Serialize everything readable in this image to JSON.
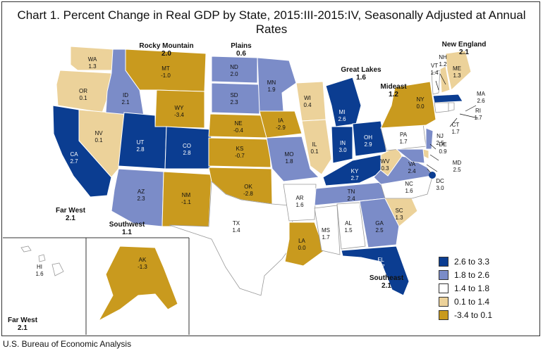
{
  "title": "Chart 1. Percent Change in Real GDP by State, 2015:III-2015:IV, Seasonally Adjusted at Annual Rates",
  "source": "U.S. Bureau of Economic Analysis",
  "colors": {
    "bin1": "#0b3d91",
    "bin2": "#7b8cc8",
    "bin3": "#ffffff",
    "bin4": "#ecd29a",
    "bin5": "#c99a1e"
  },
  "legend": [
    {
      "label": "2.6 to 3.3",
      "color": "#0b3d91"
    },
    {
      "label": "1.8 to 2.6",
      "color": "#7b8cc8"
    },
    {
      "label": "1.4 to 1.8",
      "color": "#ffffff"
    },
    {
      "label": "0.1 to 1.4",
      "color": "#ecd29a"
    },
    {
      "label": "-3.4 to 0.1",
      "color": "#c99a1e"
    }
  ],
  "regions": {
    "rocky_mountain": {
      "name": "Rocky Mountain",
      "value": "2.0"
    },
    "plains": {
      "name": "Plains",
      "value": "0.6"
    },
    "great_lakes": {
      "name": "Great Lakes",
      "value": "1.6"
    },
    "new_england": {
      "name": "New England",
      "value": "2.1"
    },
    "mideast": {
      "name": "Mideast",
      "value": "1.2"
    },
    "far_west": {
      "name": "Far West",
      "value": "2.1"
    },
    "southwest": {
      "name": "Southwest",
      "value": "1.1"
    },
    "southeast": {
      "name": "Southeast",
      "value": "2.1"
    },
    "far_west_inset": {
      "name": "Far West",
      "value": "2.1"
    }
  },
  "states": {
    "WA": {
      "abbr": "WA",
      "value": "1.3"
    },
    "OR": {
      "abbr": "OR",
      "value": "0.1"
    },
    "CA": {
      "abbr": "CA",
      "value": "2.7"
    },
    "NV": {
      "abbr": "NV",
      "value": "0.1"
    },
    "ID": {
      "abbr": "ID",
      "value": "2.1"
    },
    "MT": {
      "abbr": "MT",
      "value": "-1.0"
    },
    "WY": {
      "abbr": "WY",
      "value": "-3.4"
    },
    "UT": {
      "abbr": "UT",
      "value": "2.8"
    },
    "CO": {
      "abbr": "CO",
      "value": "2.8"
    },
    "AZ": {
      "abbr": "AZ",
      "value": "2.3"
    },
    "NM": {
      "abbr": "NM",
      "value": "-1.1"
    },
    "ND": {
      "abbr": "ND",
      "value": "2.0"
    },
    "SD": {
      "abbr": "SD",
      "value": "2.3"
    },
    "NE": {
      "abbr": "NE",
      "value": "-0.4"
    },
    "KS": {
      "abbr": "KS",
      "value": "-0.7"
    },
    "OK": {
      "abbr": "OK",
      "value": "-2.8"
    },
    "TX": {
      "abbr": "TX",
      "value": "1.4"
    },
    "MN": {
      "abbr": "MN",
      "value": "1.9"
    },
    "IA": {
      "abbr": "IA",
      "value": "-2.9"
    },
    "MO": {
      "abbr": "MO",
      "value": "1.8"
    },
    "AR": {
      "abbr": "AR",
      "value": "1.6"
    },
    "LA": {
      "abbr": "LA",
      "value": "0.0"
    },
    "WI": {
      "abbr": "WI",
      "value": "0.4"
    },
    "IL": {
      "abbr": "IL",
      "value": "0.1"
    },
    "MI": {
      "abbr": "MI",
      "value": "2.6"
    },
    "IN": {
      "abbr": "IN",
      "value": "3.0"
    },
    "OH": {
      "abbr": "OH",
      "value": "2.9"
    },
    "KY": {
      "abbr": "KY",
      "value": "2.7"
    },
    "TN": {
      "abbr": "TN",
      "value": "2.4"
    },
    "MS": {
      "abbr": "MS",
      "value": "1.7"
    },
    "AL": {
      "abbr": "AL",
      "value": "1.5"
    },
    "GA": {
      "abbr": "GA",
      "value": "2.5"
    },
    "FL": {
      "abbr": "FL",
      "value": "2.7"
    },
    "SC": {
      "abbr": "SC",
      "value": "1.3"
    },
    "NC": {
      "abbr": "NC",
      "value": "1.6"
    },
    "VA": {
      "abbr": "VA",
      "value": "2.4"
    },
    "WV": {
      "abbr": "WV",
      "value": "0.3"
    },
    "PA": {
      "abbr": "PA",
      "value": "1.7"
    },
    "NY": {
      "abbr": "NY",
      "value": "0.0"
    },
    "NJ": {
      "abbr": "NJ",
      "value": "2.5"
    },
    "DE": {
      "abbr": "DE",
      "value": "0.9"
    },
    "MD": {
      "abbr": "MD",
      "value": "2.5"
    },
    "DC": {
      "abbr": "DC",
      "value": "3.0"
    },
    "VT": {
      "abbr": "VT",
      "value": "1.4"
    },
    "NH": {
      "abbr": "NH",
      "value": "1.2"
    },
    "ME": {
      "abbr": "ME",
      "value": "1.3"
    },
    "MA": {
      "abbr": "MA",
      "value": "2.6"
    },
    "CT": {
      "abbr": "CT",
      "value": "1.7"
    },
    "RI": {
      "abbr": "RI",
      "value": "1.7"
    },
    "AK": {
      "abbr": "AK",
      "value": "-1.3"
    },
    "HI": {
      "abbr": "HI",
      "value": "1.6"
    }
  }
}
